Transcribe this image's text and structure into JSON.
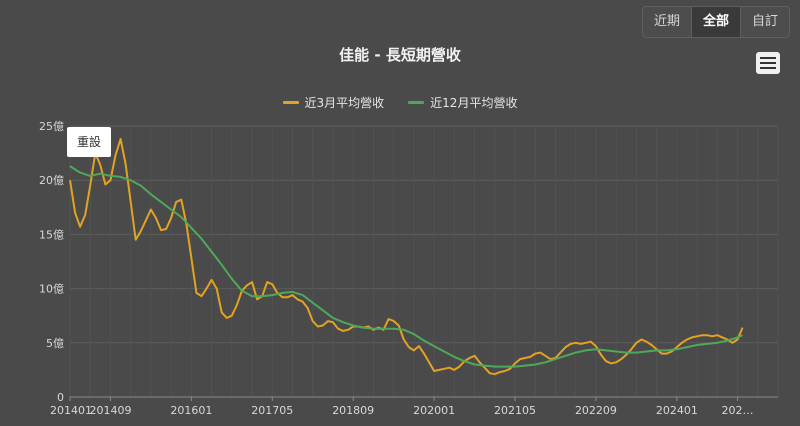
{
  "range_buttons": [
    {
      "label": "近期",
      "active": false
    },
    {
      "label": "全部",
      "active": true
    },
    {
      "label": "自訂",
      "active": false
    }
  ],
  "reset_label": "重設",
  "colors": {
    "series3": "#e3a221",
    "series12": "#4fa85a",
    "grid": "#5d5d5d",
    "axis": "#8a8a8a"
  },
  "chart_data": {
    "type": "line",
    "title": "佳能 - 長短期營收",
    "x_tick_labels": [
      "201401",
      "201409",
      "201601",
      "201705",
      "201809",
      "202001",
      "202105",
      "202209",
      "202401",
      "202…"
    ],
    "x_tick_months": [
      0,
      8,
      24,
      40,
      56,
      72,
      88,
      104,
      120,
      132
    ],
    "y_tick_labels": [
      "0",
      "5億",
      "10億",
      "15億",
      "20億",
      "25億"
    ],
    "y_tick_values": [
      0,
      5,
      10,
      15,
      20,
      25
    ],
    "ylim": [
      0,
      25
    ],
    "x_range_months": [
      0,
      140
    ],
    "series": [
      {
        "name": "近3月平均營收",
        "color": "#e3a221",
        "points": [
          [
            0,
            20
          ],
          [
            1,
            17
          ],
          [
            2,
            15.7
          ],
          [
            3,
            16.8
          ],
          [
            4,
            19.5
          ],
          [
            5,
            22.5
          ],
          [
            6,
            21.4
          ],
          [
            7,
            19.6
          ],
          [
            8,
            20
          ],
          [
            9,
            22.3
          ],
          [
            10,
            23.8
          ],
          [
            11,
            21.5
          ],
          [
            12,
            18
          ],
          [
            13,
            14.5
          ],
          [
            14,
            15.3
          ],
          [
            15,
            16.3
          ],
          [
            16,
            17.3
          ],
          [
            17,
            16.5
          ],
          [
            18,
            15.4
          ],
          [
            19,
            15.5
          ],
          [
            20,
            16.5
          ],
          [
            21,
            18
          ],
          [
            22,
            18.2
          ],
          [
            23,
            16
          ],
          [
            24,
            12.8
          ],
          [
            25,
            9.6
          ],
          [
            26,
            9.3
          ],
          [
            27,
            10
          ],
          [
            28,
            10.8
          ],
          [
            29,
            10
          ],
          [
            30,
            7.8
          ],
          [
            31,
            7.3
          ],
          [
            32,
            7.5
          ],
          [
            33,
            8.5
          ],
          [
            34,
            9.8
          ],
          [
            35,
            10.3
          ],
          [
            36,
            10.6
          ],
          [
            37,
            9
          ],
          [
            38,
            9.3
          ],
          [
            39,
            10.6
          ],
          [
            40,
            10.4
          ],
          [
            41,
            9.6
          ],
          [
            42,
            9.2
          ],
          [
            43,
            9.2
          ],
          [
            44,
            9.4
          ],
          [
            45,
            9
          ],
          [
            46,
            8.8
          ],
          [
            47,
            8.2
          ],
          [
            48,
            7
          ],
          [
            49,
            6.5
          ],
          [
            50,
            6.6
          ],
          [
            51,
            7
          ],
          [
            52,
            6.9
          ],
          [
            53,
            6.3
          ],
          [
            54,
            6.1
          ],
          [
            55,
            6.2
          ],
          [
            56,
            6.5
          ],
          [
            57,
            6.5
          ],
          [
            58,
            6.4
          ],
          [
            59,
            6.5
          ],
          [
            60,
            6.2
          ],
          [
            61,
            6.4
          ],
          [
            62,
            6.2
          ],
          [
            63,
            7.2
          ],
          [
            64,
            7
          ],
          [
            65,
            6.6
          ],
          [
            66,
            5.3
          ],
          [
            67,
            4.6
          ],
          [
            68,
            4.3
          ],
          [
            69,
            4.7
          ],
          [
            70,
            4
          ],
          [
            71,
            3.2
          ],
          [
            72,
            2.4
          ],
          [
            73,
            2.5
          ],
          [
            74,
            2.6
          ],
          [
            75,
            2.7
          ],
          [
            76,
            2.5
          ],
          [
            77,
            2.8
          ],
          [
            78,
            3.3
          ],
          [
            79,
            3.6
          ],
          [
            80,
            3.8
          ],
          [
            81,
            3.2
          ],
          [
            82,
            2.7
          ],
          [
            83,
            2.2
          ],
          [
            84,
            2.1
          ],
          [
            85,
            2.3
          ],
          [
            86,
            2.4
          ],
          [
            87,
            2.6
          ],
          [
            88,
            3.1
          ],
          [
            89,
            3.5
          ],
          [
            90,
            3.6
          ],
          [
            91,
            3.7
          ],
          [
            92,
            4
          ],
          [
            93,
            4.1
          ],
          [
            94,
            3.8
          ],
          [
            95,
            3.5
          ],
          [
            96,
            3.6
          ],
          [
            97,
            4.1
          ],
          [
            98,
            4.6
          ],
          [
            99,
            4.9
          ],
          [
            100,
            5
          ],
          [
            101,
            4.9
          ],
          [
            102,
            5
          ],
          [
            103,
            5.1
          ],
          [
            104,
            4.7
          ],
          [
            105,
            3.9
          ],
          [
            106,
            3.3
          ],
          [
            107,
            3.1
          ],
          [
            108,
            3.2
          ],
          [
            109,
            3.5
          ],
          [
            110,
            3.9
          ],
          [
            111,
            4.4
          ],
          [
            112,
            5
          ],
          [
            113,
            5.3
          ],
          [
            114,
            5.1
          ],
          [
            115,
            4.8
          ],
          [
            116,
            4.4
          ],
          [
            117,
            4
          ],
          [
            118,
            4
          ],
          [
            119,
            4.2
          ],
          [
            120,
            4.6
          ],
          [
            121,
            5
          ],
          [
            122,
            5.3
          ],
          [
            123,
            5.5
          ],
          [
            124,
            5.6
          ],
          [
            125,
            5.7
          ],
          [
            126,
            5.7
          ],
          [
            127,
            5.6
          ],
          [
            128,
            5.7
          ],
          [
            129,
            5.5
          ],
          [
            130,
            5.3
          ],
          [
            131,
            5
          ],
          [
            132,
            5.3
          ],
          [
            133,
            6.4
          ]
        ]
      },
      {
        "name": "近12月平均營收",
        "color": "#4fa85a",
        "points": [
          [
            0,
            21.3
          ],
          [
            2,
            20.7
          ],
          [
            4,
            20.4
          ],
          [
            6,
            20.6
          ],
          [
            8,
            20.4
          ],
          [
            10,
            20.3
          ],
          [
            12,
            20
          ],
          [
            14,
            19.5
          ],
          [
            16,
            18.7
          ],
          [
            18,
            18
          ],
          [
            20,
            17.3
          ],
          [
            22,
            16.6
          ],
          [
            24,
            15.6
          ],
          [
            26,
            14.6
          ],
          [
            28,
            13.4
          ],
          [
            30,
            12.2
          ],
          [
            32,
            10.9
          ],
          [
            34,
            9.8
          ],
          [
            36,
            9.3
          ],
          [
            38,
            9.3
          ],
          [
            40,
            9.4
          ],
          [
            42,
            9.6
          ],
          [
            44,
            9.7
          ],
          [
            46,
            9.4
          ],
          [
            48,
            8.7
          ],
          [
            50,
            8
          ],
          [
            52,
            7.3
          ],
          [
            54,
            6.9
          ],
          [
            56,
            6.6
          ],
          [
            58,
            6.4
          ],
          [
            60,
            6.3
          ],
          [
            62,
            6.3
          ],
          [
            64,
            6.3
          ],
          [
            66,
            6.2
          ],
          [
            68,
            5.8
          ],
          [
            70,
            5.2
          ],
          [
            72,
            4.7
          ],
          [
            74,
            4.2
          ],
          [
            76,
            3.7
          ],
          [
            78,
            3.3
          ],
          [
            80,
            3
          ],
          [
            82,
            2.9
          ],
          [
            84,
            2.8
          ],
          [
            86,
            2.8
          ],
          [
            88,
            2.8
          ],
          [
            90,
            2.9
          ],
          [
            92,
            3
          ],
          [
            94,
            3.2
          ],
          [
            96,
            3.5
          ],
          [
            98,
            3.8
          ],
          [
            100,
            4.1
          ],
          [
            102,
            4.3
          ],
          [
            104,
            4.4
          ],
          [
            106,
            4.3
          ],
          [
            108,
            4.2
          ],
          [
            110,
            4.1
          ],
          [
            112,
            4.1
          ],
          [
            114,
            4.2
          ],
          [
            116,
            4.3
          ],
          [
            118,
            4.3
          ],
          [
            120,
            4.4
          ],
          [
            122,
            4.6
          ],
          [
            124,
            4.8
          ],
          [
            126,
            4.9
          ],
          [
            128,
            5
          ],
          [
            130,
            5.2
          ],
          [
            132,
            5.5
          ],
          [
            133,
            5.7
          ]
        ]
      }
    ]
  }
}
